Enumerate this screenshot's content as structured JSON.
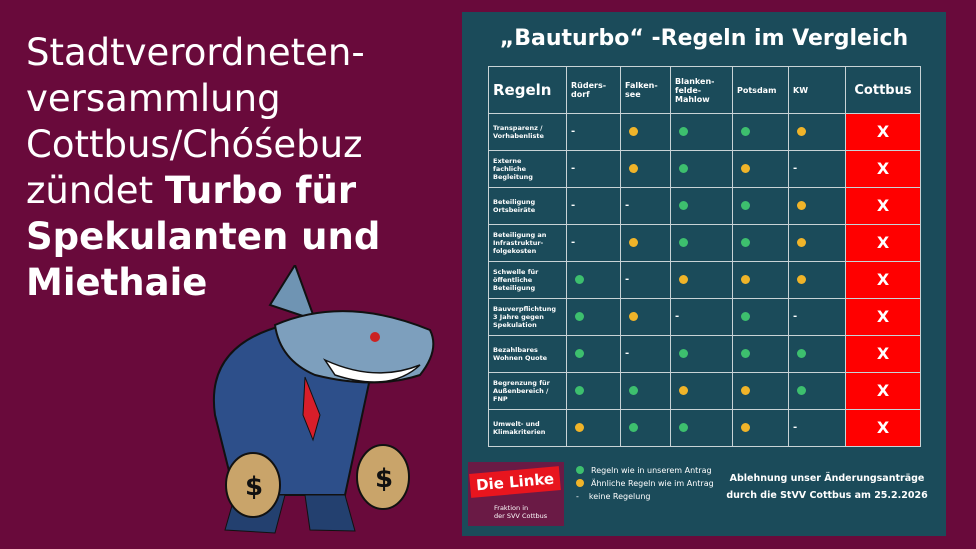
{
  "headline": {
    "regular": [
      "Stadtverordneten-",
      "versammlung",
      "Cottbus/Chóśebuz",
      "zündet"
    ],
    "bold": [
      "Turbo für",
      "Spekulanten und",
      "Miethaie"
    ]
  },
  "panel": {
    "title": "„Bauturbo“ -Regeln im Vergleich",
    "table": {
      "header": [
        "Regeln",
        "Rüders-\ndorf",
        "Falken-\nsee",
        "Blanken-\nfelde-\nMahlow",
        "Potsdam",
        "KW",
        "Cottbus"
      ],
      "rows": [
        [
          "Transparenz /\nVorhabenliste",
          "-",
          "#f0b429",
          "#3dbf6e",
          "#3dbf6e",
          "#f0b429",
          "X"
        ],
        [
          "Externe\nfachliche\nBegleitung",
          "-",
          "#f0b429",
          "#3dbf6e",
          "#f0b429",
          "-",
          "X"
        ],
        [
          "Beteiligung\nOrtsbeiräte",
          "-",
          "-",
          "#3dbf6e",
          "#3dbf6e",
          "#f0b429",
          "X"
        ],
        [
          "Beteiligung an\nInfrastruktur-\nfolgekosten",
          "-",
          "#f0b429",
          "#3dbf6e",
          "#3dbf6e",
          "#f0b429",
          "X"
        ],
        [
          "Schwelle für\nöffentliche\nBeteiligung",
          "#3dbf6e",
          "-",
          "#f0b429",
          "#f0b429",
          "#f0b429",
          "X"
        ],
        [
          "Bauverpflichtung\n3 Jahre gegen\nSpekulation",
          "#3dbf6e",
          "#f0b429",
          "-",
          "#3dbf6e",
          "-",
          "X"
        ],
        [
          "Bezahlbares\nWohnen Quote",
          "#3dbf6e",
          "-",
          "#3dbf6e",
          "#3dbf6e",
          "#3dbf6e",
          "X"
        ],
        [
          "Begrenzung für\nAußenbereich /\nFNP",
          "#3dbf6e",
          "#3dbf6e",
          "#f0b429",
          "#f0b429",
          "#3dbf6e",
          "X"
        ],
        [
          "Umwelt- und\nKlimakriterien",
          "#f0b429",
          "#3dbf6e",
          "#3dbf6e",
          "#f0b429",
          "-",
          "X"
        ]
      ]
    },
    "legend": [
      {
        "color": "#3dbf6e",
        "label": "Regeln wie in unserem Antrag"
      },
      {
        "color": "#f0b429",
        "label": "Ähnliche Regeln wie im Antrag"
      },
      {
        "symbol": "-",
        "label": "keine Regelung"
      }
    ],
    "footer": "Ablehnung unser Änderungsanträge\ndurch die StVV Cottbus am 25.2.2026",
    "logo": {
      "name": "Die Linke",
      "subtitle": "Fraktion in\nder SVV Cottbus"
    }
  }
}
